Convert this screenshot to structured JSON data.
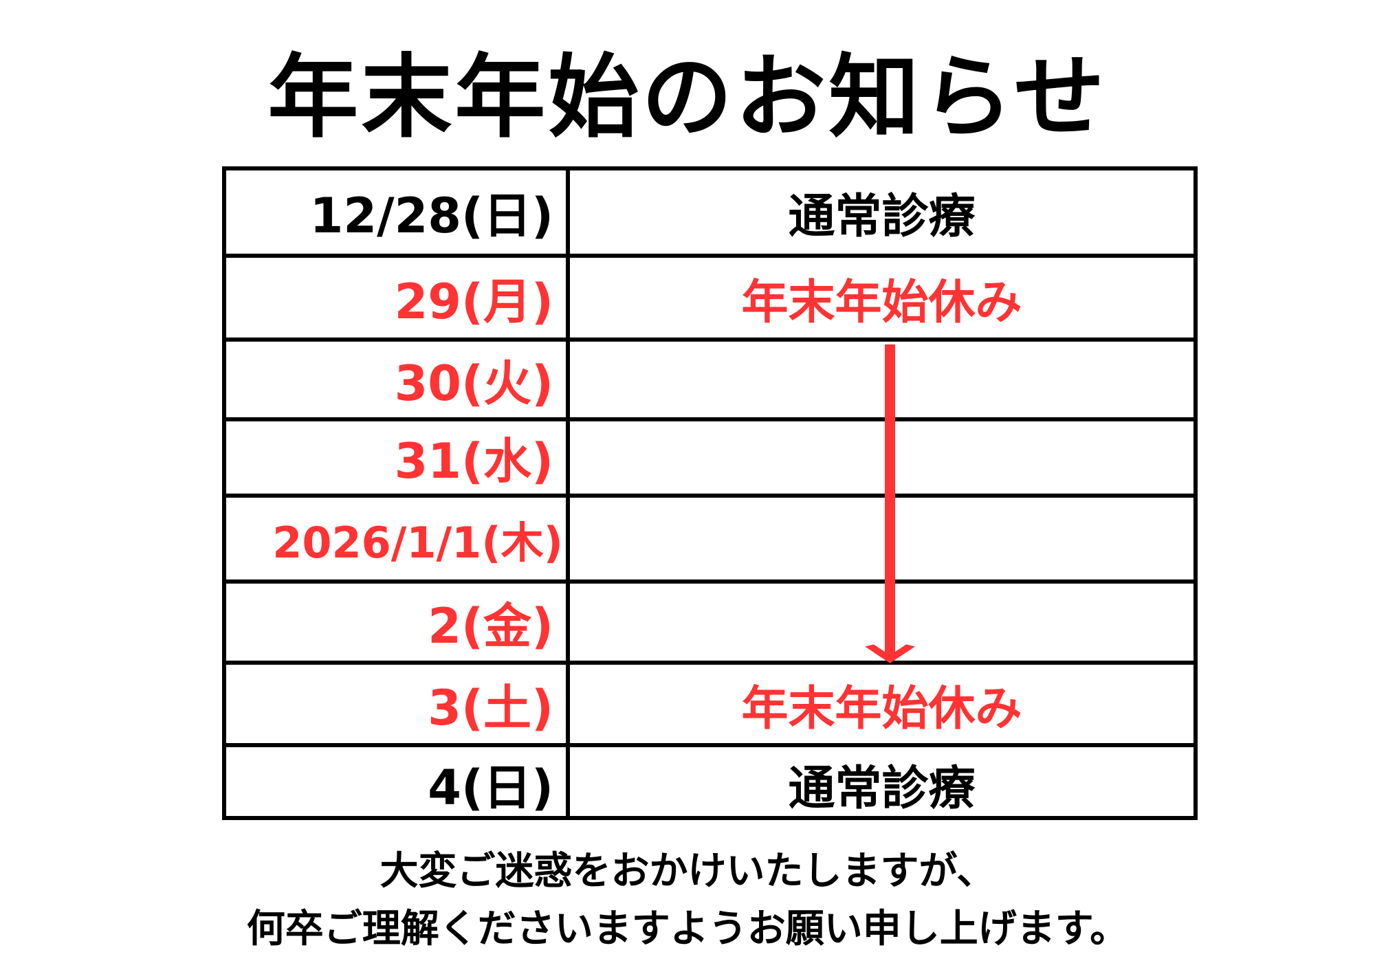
{
  "title": "年末年始のお知らせ",
  "colors": {
    "holiday": "#ff3333",
    "normal": "#000000"
  },
  "schedule": [
    {
      "date": "12/28(日)",
      "status": "通常診療",
      "type": "normal"
    },
    {
      "date": "29(月)",
      "status": "年末年始休み",
      "type": "holiday"
    },
    {
      "date": "30(火)",
      "status": "",
      "type": "holiday"
    },
    {
      "date": "31(水)",
      "status": "",
      "type": "holiday"
    },
    {
      "date": "2026/1/1(木)",
      "status": "",
      "type": "holiday"
    },
    {
      "date": "2(金)",
      "status": "",
      "type": "holiday"
    },
    {
      "date": "3(土)",
      "status": "年末年始休み",
      "type": "holiday"
    },
    {
      "date": "4(日)",
      "status": "通常診療",
      "type": "normal"
    }
  ],
  "message": {
    "line1": "大変ご迷惑をおかけいたしますが、",
    "line2": "何卒ご理解くださいますようお願い申し上げます。"
  }
}
